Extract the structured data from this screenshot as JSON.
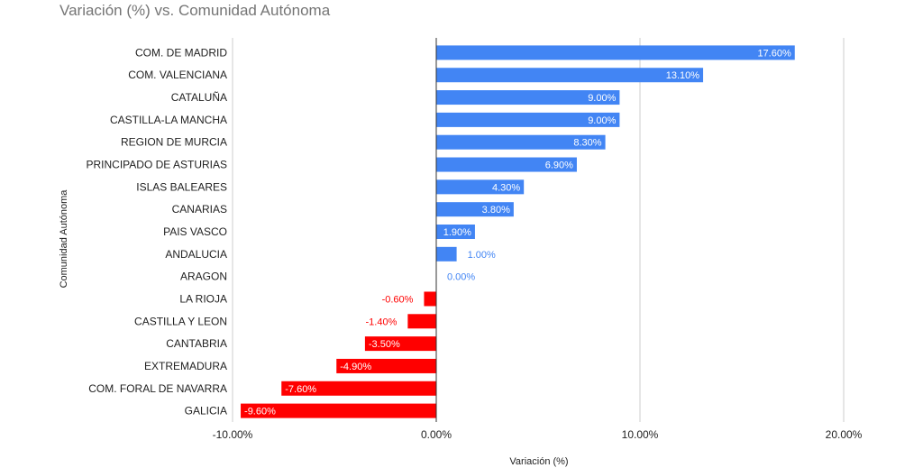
{
  "chart_data": {
    "type": "bar",
    "orientation": "horizontal",
    "title": "Variación (%) vs. Comunidad Autónoma",
    "xlabel": "Variación (%)",
    "ylabel": "Comunidad Autónoma",
    "xlim": [
      -10,
      20
    ],
    "xticks": [
      -10,
      0,
      10,
      20
    ],
    "xtick_labels": [
      "-10.00%",
      "0.00%",
      "10.00%",
      "20.00%"
    ],
    "grid": true,
    "legend": "none",
    "positive_color": "#4285f4",
    "negative_color": "#ff0000",
    "categories": [
      "COM. DE MADRID",
      "COM. VALENCIANA",
      "CATALUÑA",
      "CASTILLA-LA MANCHA",
      "REGION DE MURCIA",
      "PRINCIPADO DE ASTURIAS",
      "ISLAS BALEARES",
      "CANARIAS",
      "PAIS VASCO",
      "ANDALUCIA",
      "ARAGON",
      "LA RIOJA",
      "CASTILLA Y LEON",
      "CANTABRIA",
      "EXTREMADURA",
      "COM. FORAL DE NAVARRA",
      "GALICIA"
    ],
    "values": [
      17.6,
      13.1,
      9.0,
      9.0,
      8.3,
      6.9,
      4.3,
      3.8,
      1.9,
      1.0,
      0.0,
      -0.6,
      -1.4,
      -3.5,
      -4.9,
      -7.6,
      -9.6
    ],
    "data_labels": [
      "17.60%",
      "13.10%",
      "9.00%",
      "9.00%",
      "8.30%",
      "6.90%",
      "4.30%",
      "3.80%",
      "1.90%",
      "1.00%",
      "0.00%",
      "-0.60%",
      "-1.40%",
      "-3.50%",
      "-4.90%",
      "-7.60%",
      "-9.60%"
    ]
  }
}
